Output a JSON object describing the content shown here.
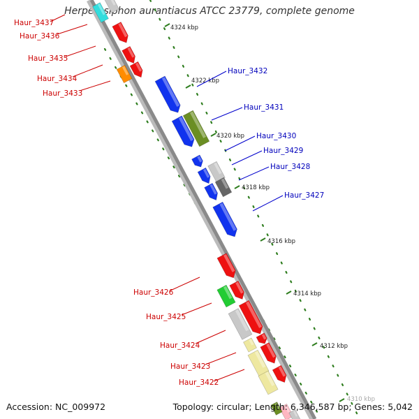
{
  "title": "Herpetosiphon aurantiacus ATCC 23779, complete genome",
  "footer": {
    "accession": "Accession: NC_009972",
    "summary": "Topology: circular; Length: 6,346,587 bp; Genes: 5,042"
  },
  "colors": {
    "backbone": "#8a8a8a",
    "tick": "#2e7d1e",
    "label_left": "#cc0000",
    "label_right": "#0000bb",
    "leader_left": "#cc0000",
    "leader_right": "#0000cc"
  },
  "scale_ticks": [
    "4324 kbp",
    "4322 kbp",
    "4320 kbp",
    "4318 kbp",
    "4316 kbp",
    "4314 kbp",
    "4312 kbp",
    "4310 kbp"
  ],
  "genes_left": [
    "Haur_3437",
    "Haur_3436",
    "Haur_3435",
    "Haur_3434",
    "Haur_3433",
    "Haur_3426",
    "Haur_3425",
    "Haur_3424",
    "Haur_3423",
    "Haur_3422"
  ],
  "genes_right": [
    "Haur_3432",
    "Haur_3431",
    "Haur_3430",
    "Haur_3429",
    "Haur_3428",
    "Haur_3427"
  ],
  "feature_colors": {
    "red": "#ee1111",
    "blue": "#1133ee",
    "olive": "#6b8e23",
    "gray_light": "#c8c8c8",
    "gray_dark": "#666666",
    "green": "#22cc33",
    "khaki": "#eee8a0",
    "orange": "#ff8c00",
    "cyan": "#33dddd",
    "pink": "#ffb6c1"
  }
}
